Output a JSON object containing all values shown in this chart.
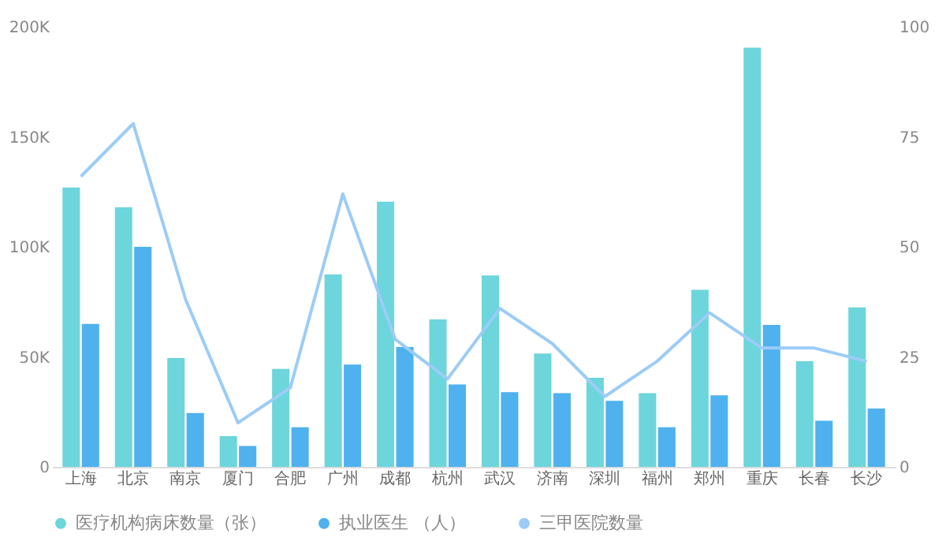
{
  "chart_data": {
    "type": "bar",
    "categories": [
      "上海",
      "北京",
      "南京",
      "厦门",
      "合肥",
      "广州",
      "成都",
      "杭州",
      "武汉",
      "济南",
      "深圳",
      "福州",
      "郑州",
      "重庆",
      "长春",
      "长沙"
    ],
    "series": [
      {
        "name": "医疗机构病床数量（张）",
        "color": "#6dd5dc",
        "values": [
          127000,
          118000,
          49500,
          14000,
          44500,
          87500,
          120500,
          67000,
          87000,
          51500,
          40500,
          33500,
          80500,
          190500,
          48000,
          72500
        ]
      },
      {
        "name": "执业医生 （人）",
        "color": "#4fb1ee",
        "values": [
          65000,
          100000,
          24500,
          9500,
          18000,
          46500,
          54500,
          37500,
          34000,
          33500,
          30000,
          18000,
          32500,
          64500,
          21000,
          26500
        ]
      },
      {
        "name": "三甲医院数量",
        "type": "line",
        "axis": "y2",
        "color": "#9cccf7",
        "values": [
          66,
          78,
          38,
          10,
          18,
          62,
          29,
          20,
          36,
          28,
          16,
          24,
          35,
          27,
          27,
          24
        ]
      }
    ],
    "ylim": [
      0,
      200000
    ],
    "yticks": [
      0,
      {
        "value": 50000,
        "label": "50K"
      },
      {
        "value": 100000,
        "label": "100K"
      },
      {
        "value": 150000,
        "label": "150K"
      },
      {
        "value": 200000,
        "label": "200K"
      }
    ],
    "y2lim": [
      0,
      100
    ],
    "y2ticks": [
      0,
      25,
      50,
      75,
      100
    ],
    "grid": false,
    "legend": "bottom",
    "marker": "none",
    "line_style": "solid"
  }
}
